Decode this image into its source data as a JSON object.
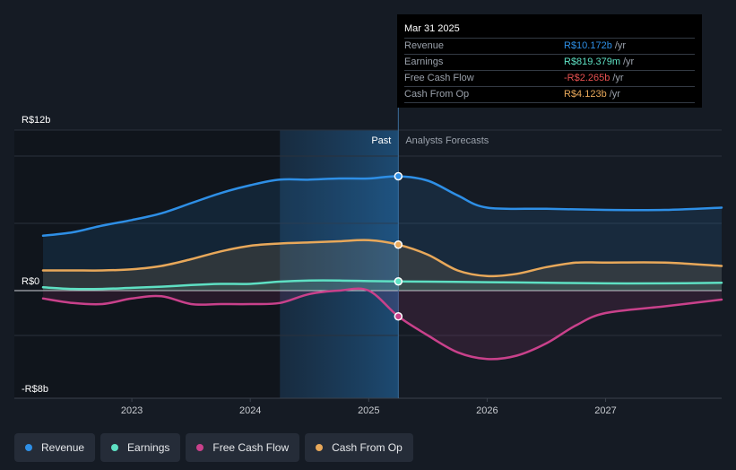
{
  "chart_data": {
    "type": "line",
    "y_unit_prefix": "R$",
    "ylim": [
      -8,
      12
    ],
    "y_tick_labels": [
      "R$12b",
      "R$0",
      "-R$8b"
    ],
    "x_tick_labels": [
      "2023",
      "2024",
      "2025",
      "2026",
      "2027"
    ],
    "x_range": [
      2022.25,
      2027.98
    ],
    "past_label": "Past",
    "forecast_label": "Analysts Forecasts",
    "divider_x": 2025.25,
    "shaded_range": [
      2024.25,
      2025.25
    ],
    "series": [
      {
        "name": "Revenue",
        "color": "#2e8fe6",
        "x": [
          2022.25,
          2022.5,
          2022.75,
          2023.0,
          2023.25,
          2023.5,
          2023.75,
          2024.0,
          2024.25,
          2024.5,
          2024.75,
          2025.0,
          2025.25,
          2025.5,
          2025.75,
          2026.0,
          2026.5,
          2027.0,
          2027.5,
          2027.98
        ],
        "values": [
          4.9,
          5.2,
          5.8,
          6.3,
          6.9,
          7.8,
          8.7,
          9.4,
          9.9,
          9.9,
          10.0,
          10.0,
          10.2,
          9.8,
          8.5,
          7.4,
          7.3,
          7.2,
          7.2,
          7.4
        ]
      },
      {
        "name": "Earnings",
        "color": "#5ee0c3",
        "x": [
          2022.25,
          2022.5,
          2022.75,
          2023.0,
          2023.25,
          2023.5,
          2023.75,
          2024.0,
          2024.25,
          2024.5,
          2024.75,
          2025.0,
          2025.25,
          2025.5,
          2026.0,
          2026.5,
          2027.0,
          2027.5,
          2027.98
        ],
        "values": [
          0.3,
          0.15,
          0.15,
          0.25,
          0.35,
          0.5,
          0.6,
          0.6,
          0.8,
          0.9,
          0.9,
          0.85,
          0.82,
          0.8,
          0.75,
          0.7,
          0.65,
          0.65,
          0.7
        ]
      },
      {
        "name": "Free Cash Flow",
        "color": "#c9418b",
        "x": [
          2022.25,
          2022.5,
          2022.75,
          2023.0,
          2023.25,
          2023.5,
          2023.75,
          2024.0,
          2024.25,
          2024.5,
          2024.75,
          2025.0,
          2025.25,
          2025.5,
          2025.75,
          2026.0,
          2026.25,
          2026.5,
          2026.75,
          2027.0,
          2027.5,
          2027.98
        ],
        "values": [
          -0.7,
          -1.1,
          -1.2,
          -0.7,
          -0.5,
          -1.2,
          -1.2,
          -1.2,
          -1.1,
          -0.3,
          0.0,
          0.0,
          -2.3,
          -4.0,
          -5.5,
          -6.1,
          -5.8,
          -4.7,
          -3.1,
          -2.0,
          -1.4,
          -0.8
        ]
      },
      {
        "name": "Cash From Op",
        "color": "#e8a85a",
        "x": [
          2022.25,
          2022.5,
          2022.75,
          2023.0,
          2023.25,
          2023.5,
          2023.75,
          2024.0,
          2024.25,
          2024.5,
          2024.75,
          2025.0,
          2025.25,
          2025.5,
          2025.75,
          2026.0,
          2026.25,
          2026.5,
          2026.75,
          2027.0,
          2027.5,
          2027.98
        ],
        "values": [
          1.8,
          1.8,
          1.8,
          1.9,
          2.2,
          2.8,
          3.5,
          4.0,
          4.2,
          4.3,
          4.4,
          4.5,
          4.1,
          3.2,
          1.8,
          1.3,
          1.5,
          2.1,
          2.5,
          2.5,
          2.5,
          2.2
        ]
      }
    ]
  },
  "tooltip": {
    "date": "Mar 31 2025",
    "rows": [
      {
        "label": "Revenue",
        "value": "R$10.172b",
        "unit": "/yr",
        "color": "#2e8fe6"
      },
      {
        "label": "Earnings",
        "value": "R$819.379m",
        "unit": "/yr",
        "color": "#5ee0c3"
      },
      {
        "label": "Free Cash Flow",
        "value": "-R$2.265b",
        "unit": "/yr",
        "color": "#e65050"
      },
      {
        "label": "Cash From Op",
        "value": "R$4.123b",
        "unit": "/yr",
        "color": "#e8a85a"
      }
    ]
  },
  "legend": [
    {
      "label": "Revenue",
      "color": "#2e8fe6"
    },
    {
      "label": "Earnings",
      "color": "#5ee0c3"
    },
    {
      "label": "Free Cash Flow",
      "color": "#c9418b"
    },
    {
      "label": "Cash From Op",
      "color": "#e8a85a"
    }
  ]
}
